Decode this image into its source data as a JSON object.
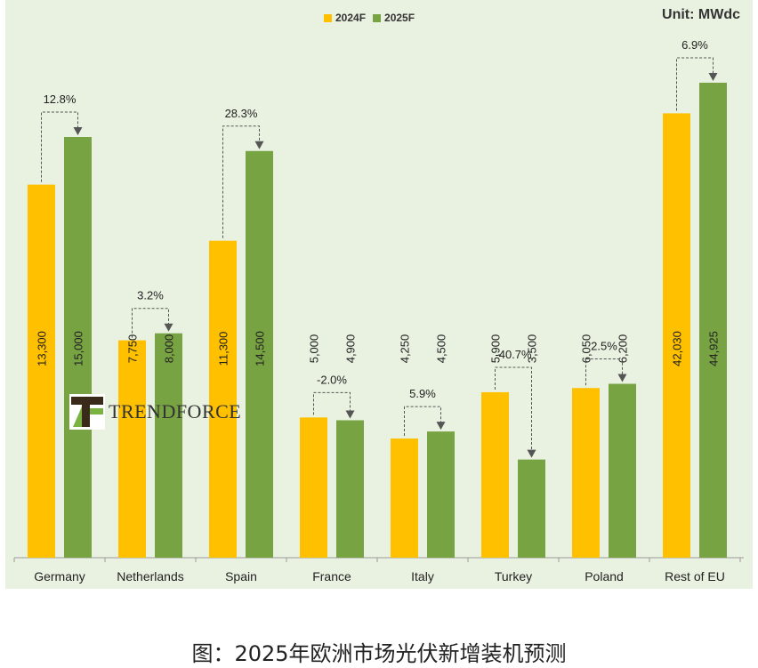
{
  "chart_data": {
    "type": "bar",
    "title": "",
    "unit": "Unit: MWdc",
    "categories": [
      "Germany",
      "Netherlands",
      "Spain",
      "France",
      "Italy",
      "Turkey",
      "Poland",
      "Rest of EU"
    ],
    "series": [
      {
        "name": "2024F",
        "color": "#ffc000",
        "values": [
          13300,
          7750,
          11300,
          5000,
          4250,
          5900,
          6050,
          42030
        ],
        "labels": [
          "13,300",
          "7,750",
          "11,300",
          "5,000",
          "4,250",
          "5,900",
          "6,050",
          "42,030"
        ]
      },
      {
        "name": "2025F",
        "color": "#77a343",
        "values": [
          15000,
          8000,
          14500,
          4900,
          4500,
          3500,
          6200,
          44925
        ],
        "labels": [
          "15,000",
          "8,000",
          "14,500",
          "4,900",
          "4,500",
          "3,500",
          "6,200",
          "44,925"
        ]
      }
    ],
    "growth": [
      "12.8%",
      "3.2%",
      "28.3%",
      "-2.0%",
      "5.9%",
      "-40.7%",
      "2.5%",
      "6.9%"
    ],
    "legend_position": "top-center",
    "grid": false
  },
  "logo": {
    "text": "TRENDFORCE"
  },
  "caption": "图：2025年欧洲市场光伏新增装机预测"
}
